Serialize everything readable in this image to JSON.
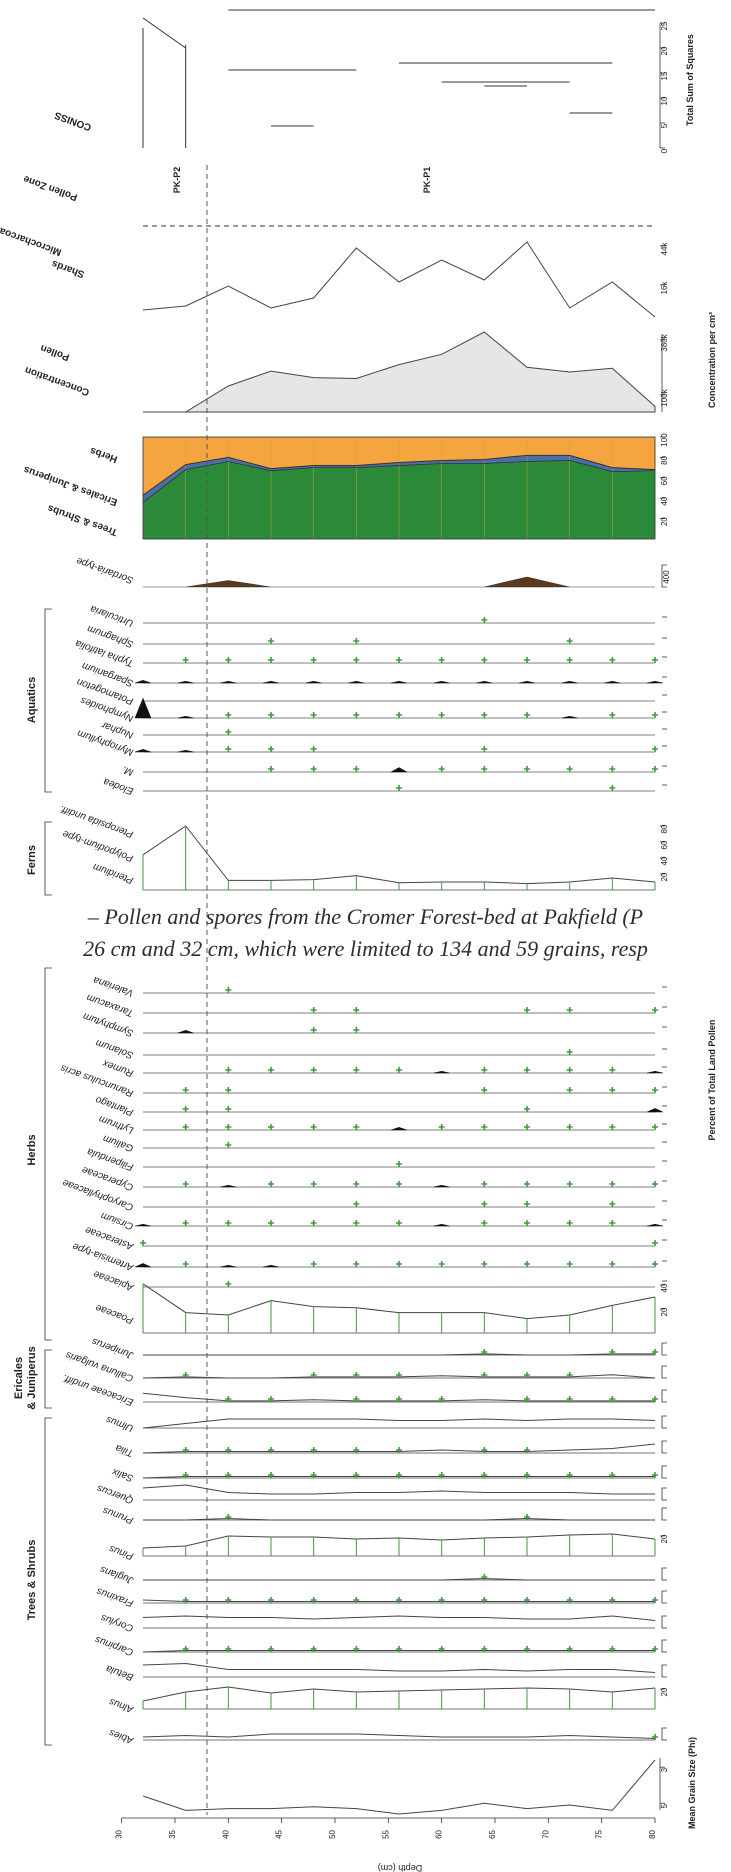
{
  "chart_data": {
    "type": "line",
    "title": "",
    "xlabel": "Depth (cm)",
    "xticks": [
      30,
      35,
      40,
      45,
      50,
      55,
      60,
      65,
      70,
      75,
      80
    ],
    "depths": [
      32,
      36,
      40,
      44,
      48,
      52,
      56,
      60,
      64,
      68,
      72,
      76,
      80
    ],
    "zone_boundary_depth": 38,
    "caption": {
      "line1": "– Pollen and spores from the Cromer Forest-bed at Pakfield (P",
      "line2": "26 cm and 32 cm, which were limited to 134 and 59 grains, resp"
    },
    "group_labels": [
      "Trees & Shrubs",
      "Ericales",
      "& Juniperus",
      "Herbs",
      "Ferns",
      "Aquatics"
    ],
    "axis_titles": {
      "ss": "Total Sum of Squares",
      "conc": "Concentration per cm³",
      "pct": "Percent of Total Land Pollen",
      "grain": "Mean Grain Size (Phi)"
    },
    "panels": {
      "conniss": {
        "label": "CONISS",
        "ticks": [
          "0",
          "5",
          "10",
          "15",
          "20",
          "25"
        ],
        "range": [
          0,
          25
        ]
      },
      "zones": {
        "label": "Pollen Zone",
        "names": [
          "PK-P2",
          "PK-P1"
        ]
      },
      "charcoal": {
        "label1": "Microcharcoal",
        "label2": "Shards",
        "ticks": [
          "16k",
          "44k"
        ],
        "values": [
          6000,
          8000,
          18000,
          7000,
          12000,
          37000,
          20000,
          31000,
          21000,
          40000,
          7000,
          20000,
          2500
        ]
      },
      "pollen_conc": {
        "label1": "Pollen",
        "label2": "Concentration",
        "ticks": [
          "100k",
          "380k"
        ],
        "values": [
          0,
          0,
          140000,
          220000,
          185000,
          180000,
          255000,
          310000,
          430000,
          240000,
          215000,
          235000,
          30000
        ]
      },
      "summary": {
        "labels": [
          "Trees & Shrubs",
          "Ericales & Juniperus",
          "Herbs"
        ],
        "ticks": [
          "20",
          "40",
          "60",
          "80",
          "100"
        ],
        "colors": {
          "trees": "#2b8a3a",
          "ericales": "#4a6fa8",
          "herbs": "#f5a540"
        },
        "trees": [
          36,
          68,
          76,
          67,
          70,
          70,
          72,
          74,
          74,
          76,
          77,
          66,
          67
        ],
        "ericales": [
          7,
          5,
          4,
          2,
          2,
          2,
          3,
          3,
          4,
          6,
          5,
          4,
          1
        ]
      },
      "sordaria": {
        "label": "Sordaria-type",
        "tick": "400",
        "color": "#5a3a1a",
        "values": [
          0,
          0,
          130,
          0,
          0,
          0,
          0,
          0,
          0,
          200,
          0,
          0,
          0
        ]
      },
      "aquatics": {
        "taxa": [
          "Urticularia",
          "Sphagnum",
          "Typha latifolia",
          "Sparganium",
          "Potamogeton",
          "Nymphoides",
          "Nuphar",
          "Myriophyllum",
          "M.",
          "Elodea"
        ],
        "values": [
          [
            0,
            0,
            0,
            0,
            0,
            0,
            0,
            0,
            1,
            0,
            0,
            0,
            0
          ],
          [
            0,
            0,
            0,
            1,
            0,
            1,
            0,
            0,
            0,
            0,
            1,
            0,
            0
          ],
          [
            0,
            1,
            1,
            1,
            1,
            1,
            1,
            1,
            1,
            1,
            1,
            1,
            1
          ],
          [
            3,
            2,
            2,
            2,
            2,
            2,
            2,
            2,
            2,
            2,
            2,
            2,
            2
          ],
          [
            0,
            0,
            0,
            0,
            0,
            0,
            0,
            0,
            0,
            0,
            0,
            0,
            0
          ],
          [
            22,
            2,
            1,
            1,
            1,
            1,
            1,
            1,
            1,
            1,
            2,
            1,
            1
          ],
          [
            0,
            0,
            1,
            0,
            0,
            0,
            0,
            0,
            0,
            0,
            0,
            0,
            0
          ],
          [
            3,
            2,
            1,
            1,
            1,
            0,
            0,
            0,
            1,
            0,
            0,
            0,
            1
          ],
          [
            0,
            0,
            0,
            1,
            1,
            1,
            5,
            1,
            1,
            1,
            1,
            1,
            1
          ],
          [
            0,
            0,
            0,
            0,
            0,
            0,
            1,
            0,
            0,
            0,
            0,
            1,
            0
          ]
        ]
      },
      "ferns": {
        "taxa": [
          "Pteropsida undiff.",
          "Polypodium-type",
          "Pteridium"
        ],
        "ticks": [
          "20",
          "40",
          "60",
          "80"
        ],
        "values": [
          44,
          80,
          12,
          12,
          13,
          18,
          9,
          10,
          10,
          8,
          10,
          15,
          10
        ]
      },
      "herbs": {
        "taxa": [
          "Valeriana",
          "Taraxacum",
          "Symphytum",
          "Solanum",
          "Rumex",
          "Ranunculus acris",
          "Plantago",
          "Lythrum",
          "Galium",
          "Filipendula",
          "Cyperaceae",
          "Caryophyllaceae",
          "Cirsium",
          "Asteraceae",
          "Artemisia-type",
          "Apiaceae"
        ],
        "values": [
          [
            0,
            0,
            1,
            0,
            0,
            0,
            0,
            0,
            0,
            0,
            0,
            0,
            0
          ],
          [
            0,
            0,
            0,
            0,
            1,
            1,
            0,
            0,
            0,
            1,
            1,
            0,
            1
          ],
          [
            0,
            3,
            0,
            0,
            1,
            1,
            0,
            0,
            0,
            0,
            0,
            0,
            0
          ],
          [
            0,
            0,
            0,
            0,
            0,
            0,
            0,
            0,
            0,
            0,
            1,
            0,
            0
          ],
          [
            0,
            0,
            1,
            1,
            1,
            1,
            1,
            2,
            1,
            1,
            1,
            1,
            2
          ],
          [
            0,
            1,
            1,
            0,
            0,
            0,
            0,
            0,
            1,
            0,
            1,
            1,
            1
          ],
          [
            0,
            1,
            1,
            0,
            0,
            0,
            0,
            0,
            0,
            1,
            0,
            0,
            4
          ],
          [
            0,
            1,
            1,
            1,
            1,
            1,
            3,
            1,
            1,
            1,
            1,
            1,
            1
          ],
          [
            0,
            0,
            1,
            0,
            0,
            0,
            0,
            0,
            0,
            0,
            0,
            0,
            0
          ],
          [
            0,
            0,
            0,
            0,
            0,
            0,
            1,
            0,
            0,
            0,
            0,
            0,
            0
          ],
          [
            0,
            1,
            2,
            1,
            1,
            1,
            1,
            2,
            1,
            1,
            1,
            1,
            1
          ],
          [
            0,
            0,
            0,
            0,
            0,
            1,
            0,
            0,
            1,
            1,
            0,
            1,
            0
          ],
          [
            2,
            1,
            1,
            1,
            1,
            1,
            1,
            2,
            1,
            1,
            1,
            1,
            2
          ],
          [
            1,
            0,
            0,
            0,
            0,
            0,
            0,
            0,
            0,
            0,
            0,
            0,
            1
          ],
          [
            4,
            1,
            2,
            2,
            1,
            1,
            1,
            1,
            1,
            1,
            1,
            1,
            1
          ],
          [
            0,
            0,
            1,
            0,
            0,
            0,
            0,
            0,
            0,
            0,
            0,
            0,
            0
          ]
        ]
      },
      "poaceae": {
        "taxa": [
          "Poaceae"
        ],
        "ticks": [
          "20",
          "40"
        ],
        "values": [
          41,
          17,
          15,
          27,
          22,
          21,
          17,
          17,
          17,
          12,
          15,
          23,
          30
        ]
      },
      "ericales": {
        "taxa": [
          "Juniperus",
          "Calluna vulgaris",
          "Ericaceae undiff."
        ],
        "values": [
          [
            0,
            0,
            0,
            0,
            0,
            0,
            0,
            0,
            1,
            0,
            0,
            1,
            1
          ],
          [
            0,
            1,
            0,
            0,
            1,
            1,
            1,
            2,
            1,
            1,
            1,
            3,
            0
          ],
          [
            8,
            4,
            1,
            1,
            2,
            1,
            1,
            1,
            2,
            1,
            1,
            1,
            1
          ]
        ]
      },
      "trees": {
        "taxa": [
          "Ulmus",
          "Tilia",
          "Salix",
          "Quercus",
          "Prunus",
          "Pinus",
          "Juglans",
          "Fraxinus",
          "Corylus",
          "Carpinus",
          "Betula",
          "Alnus",
          "Abies"
        ],
        "ticks": [
          "20"
        ],
        "values": [
          [
            0,
            3,
            6,
            6,
            6,
            6,
            5,
            5,
            6,
            5,
            6,
            6,
            5
          ],
          [
            0,
            1,
            1,
            1,
            1,
            1,
            1,
            2,
            1,
            1,
            2,
            3,
            6
          ],
          [
            0,
            1,
            1,
            1,
            1,
            1,
            1,
            1,
            1,
            1,
            1,
            1,
            1
          ],
          [
            8,
            10,
            5,
            4,
            4,
            5,
            5,
            6,
            5,
            5,
            5,
            4,
            4
          ],
          [
            0,
            0,
            1,
            0,
            0,
            0,
            0,
            0,
            0,
            1,
            0,
            0,
            0
          ],
          [
            8,
            10,
            20,
            19,
            19,
            17,
            18,
            16,
            18,
            19,
            21,
            22,
            17
          ],
          [
            0,
            0,
            0,
            0,
            0,
            0,
            0,
            0,
            1,
            0,
            0,
            0,
            0
          ],
          [
            2,
            1,
            1,
            1,
            1,
            1,
            1,
            1,
            1,
            1,
            1,
            1,
            1
          ],
          [
            7,
            8,
            7,
            7,
            6,
            7,
            8,
            7,
            7,
            6,
            6,
            8,
            5
          ],
          [
            0,
            1,
            1,
            1,
            1,
            1,
            1,
            1,
            1,
            1,
            1,
            1,
            1
          ],
          [
            8,
            9,
            5,
            5,
            5,
            5,
            4,
            4,
            5,
            4,
            5,
            5,
            3
          ],
          [
            8,
            17,
            22,
            16,
            20,
            17,
            18,
            19,
            20,
            21,
            20,
            17,
            21
          ],
          [
            2,
            3,
            2,
            4,
            4,
            4,
            3,
            2,
            2,
            2,
            3,
            2,
            1
          ]
        ]
      },
      "grain": {
        "ticks": [
          "3",
          "5"
        ],
        "values": [
          4.6,
          5.4,
          5.3,
          5.3,
          5.2,
          5.3,
          5.6,
          5.4,
          5.0,
          5.3,
          5.1,
          5.4,
          2.6
        ]
      }
    }
  }
}
